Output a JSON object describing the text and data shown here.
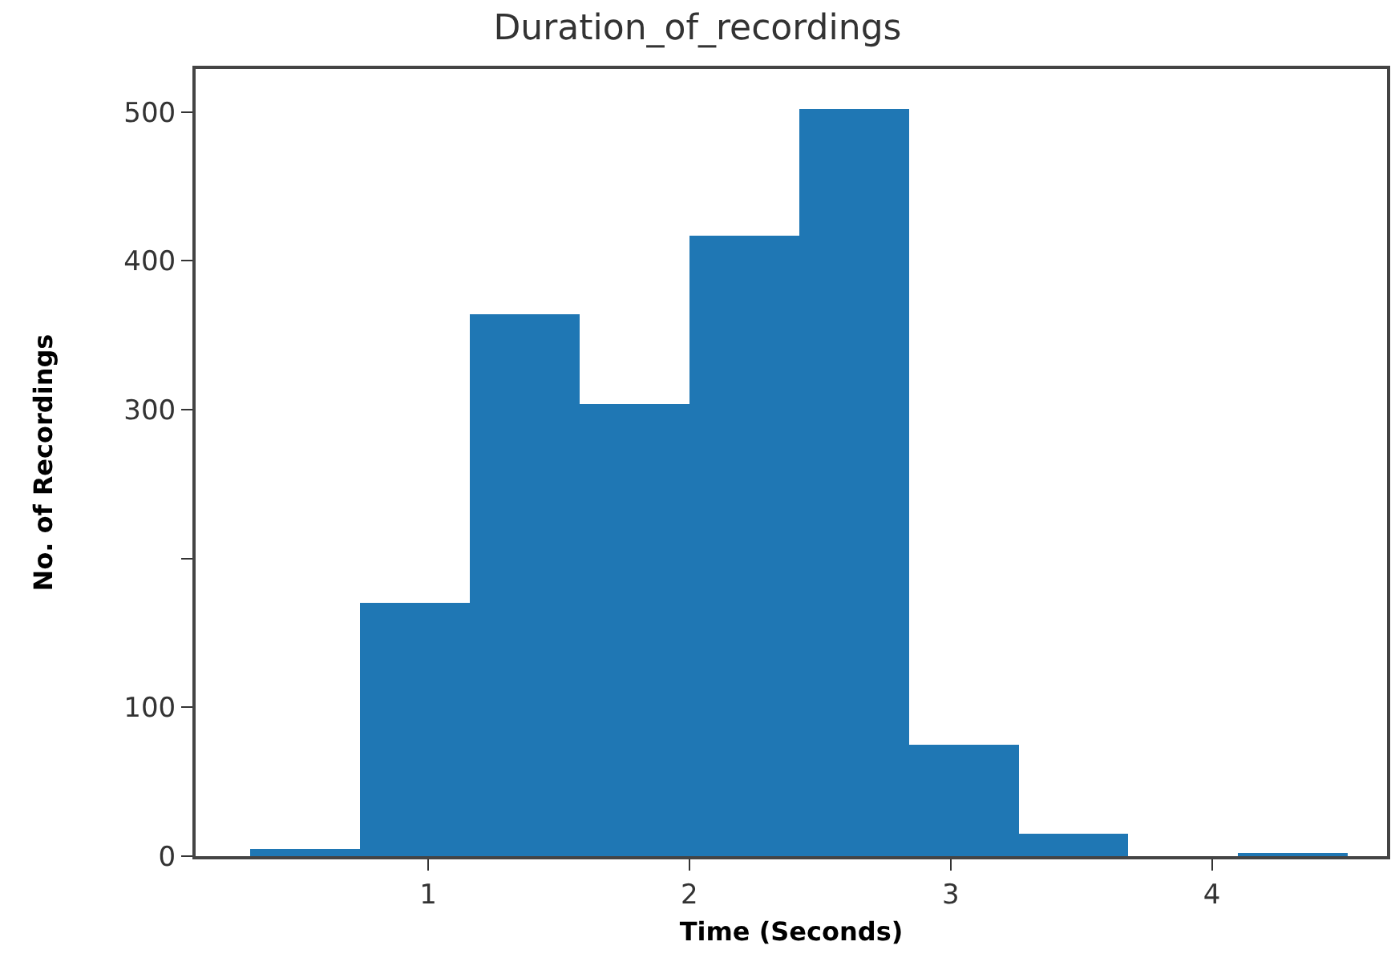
{
  "chart_data": {
    "type": "histogram",
    "title": "Duration_of_recordings",
    "xlabel": "Time (Seconds)",
    "ylabel": "No. of Recordings",
    "bins": [
      0.32,
      0.74,
      1.16,
      1.58,
      2.0,
      2.42,
      2.84,
      3.26,
      3.68,
      4.1,
      4.52
    ],
    "values": [
      5,
      170,
      364,
      304,
      417,
      502,
      75,
      15,
      0,
      2
    ],
    "color": "#1f77b4",
    "xlim": [
      0.11,
      4.67
    ],
    "xticks": [
      1,
      2,
      3,
      4
    ],
    "ylim": [
      0,
      529
    ],
    "yticks": [
      0,
      100,
      {
        "value": 200,
        "label": null
      },
      300,
      400,
      500
    ],
    "grid": false
  }
}
